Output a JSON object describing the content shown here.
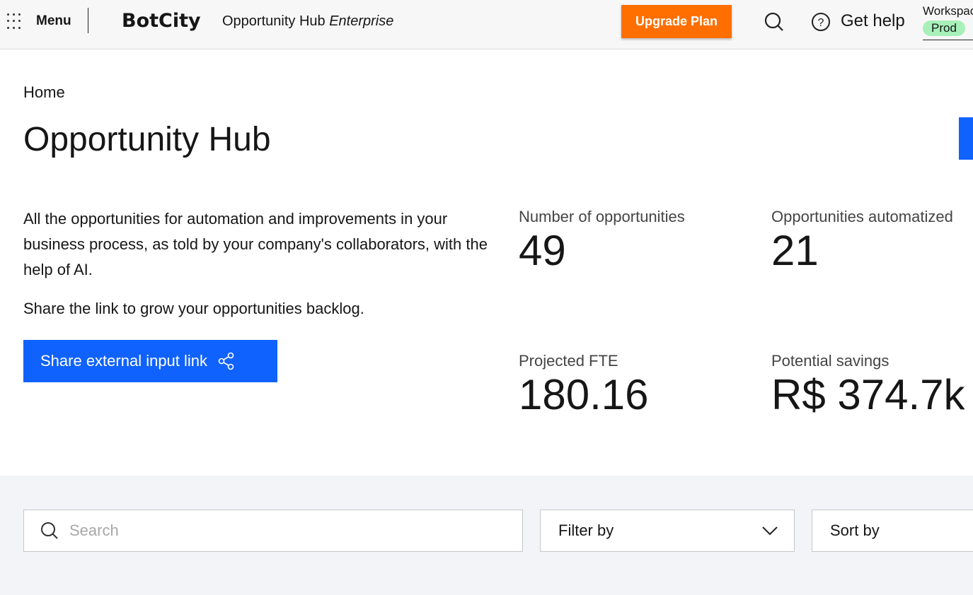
{
  "header": {
    "menu_label": "Menu",
    "logo": "BotCity",
    "app_title": "Opportunity Hub",
    "app_edition": "Enterprise",
    "upgrade_label": "Upgrade Plan",
    "upgrade_color": "#ff6f00",
    "help_label": "Get help",
    "workspace_label": "Workspace",
    "workspace_badge": "Prod"
  },
  "page": {
    "breadcrumb": "Home",
    "title": "Opportunity Hub",
    "description": "All the opportunities for automation and improvements in your business process, as told by your company's collaborators, with the help of AI.",
    "share_prompt": "Share the link to grow your opportunities backlog.",
    "share_button": "Share external input link",
    "accent": "#0f62fe"
  },
  "stats": [
    {
      "label": "Number of opportunities",
      "value": "49"
    },
    {
      "label": "Opportunities automatized",
      "value": "21"
    },
    {
      "label": "Projected FTE",
      "value": "180.16"
    },
    {
      "label": "Potential savings",
      "value": "R$ 374.7k"
    }
  ],
  "toolbar": {
    "search_placeholder": "Search",
    "filter_label": "Filter by",
    "sort_label": "Sort by"
  }
}
